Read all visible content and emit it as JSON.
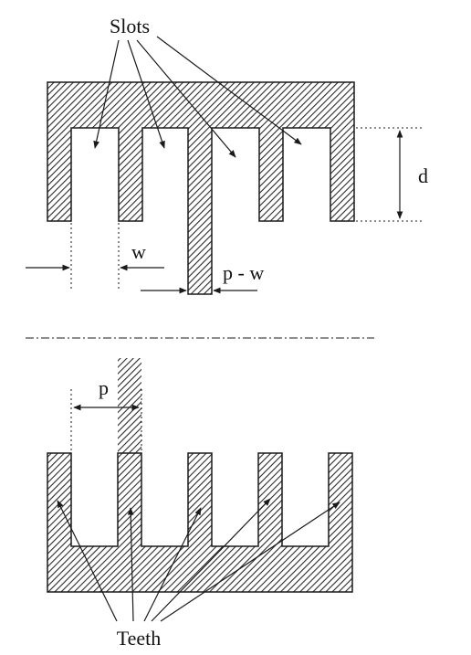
{
  "labels": {
    "slots": "Slots",
    "teeth": "Teeth",
    "d": "d",
    "w": "w",
    "p_minus_w": "p - w",
    "p": "p"
  },
  "colors": {
    "ink": "#1a1a1a",
    "hatch": "#2b2b2b",
    "background": "#ffffff"
  }
}
